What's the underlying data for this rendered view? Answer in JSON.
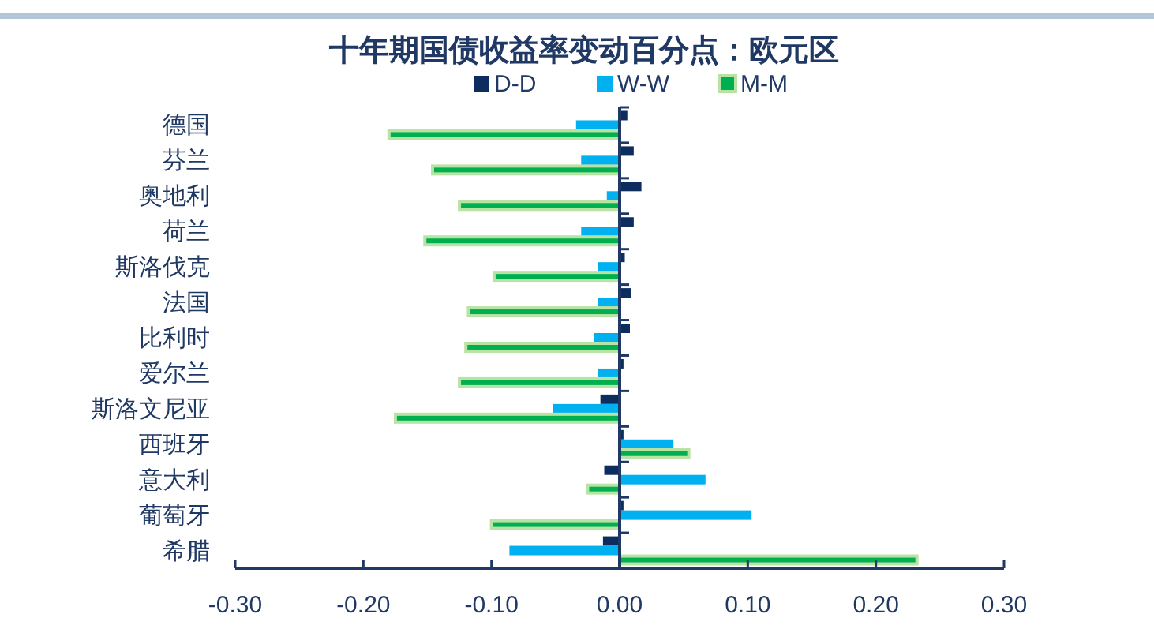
{
  "chart_data": {
    "type": "bar",
    "orientation": "horizontal",
    "title": "十年期国债收益率变动百分点：欧元区",
    "categories": [
      "德国",
      "芬兰",
      "奥地利",
      "荷兰",
      "斯洛伐克",
      "法国",
      "比利时",
      "爱尔兰",
      "斯洛文尼亚",
      "西班牙",
      "意大利",
      "葡萄牙",
      "希腊"
    ],
    "series": [
      {
        "name": "D-D",
        "color": "#0d2d5e",
        "values": [
          0.006,
          0.011,
          0.017,
          0.011,
          0.004,
          0.009,
          0.008,
          0.003,
          -0.015,
          0.003,
          -0.012,
          0.003,
          -0.013
        ]
      },
      {
        "name": "W-W",
        "color": "#00b0f0",
        "values": [
          -0.034,
          -0.03,
          -0.01,
          -0.03,
          -0.017,
          -0.017,
          -0.02,
          -0.017,
          -0.052,
          0.042,
          0.067,
          0.103,
          -0.086
        ]
      },
      {
        "name": "M-M",
        "color": "#00b050",
        "values": [
          -0.18,
          -0.146,
          -0.125,
          -0.152,
          -0.098,
          -0.118,
          -0.12,
          -0.125,
          -0.175,
          0.054,
          -0.025,
          -0.1,
          0.232
        ]
      }
    ],
    "xlim": [
      -0.3,
      0.3
    ],
    "xticks": [
      {
        "value": -0.3,
        "label": "-0.30"
      },
      {
        "value": -0.2,
        "label": "-0.20"
      },
      {
        "value": -0.1,
        "label": "-0.10"
      },
      {
        "value": 0,
        "label": "0.00"
      },
      {
        "value": 0.1,
        "label": "0.10"
      },
      {
        "value": 0.2,
        "label": "0.20"
      },
      {
        "value": 0.3,
        "label": "0.30"
      }
    ],
    "ref_lines": [
      {
        "axis": "x",
        "value": 0,
        "color": "#1f3864"
      }
    ],
    "grid": false,
    "legend": "top right"
  }
}
